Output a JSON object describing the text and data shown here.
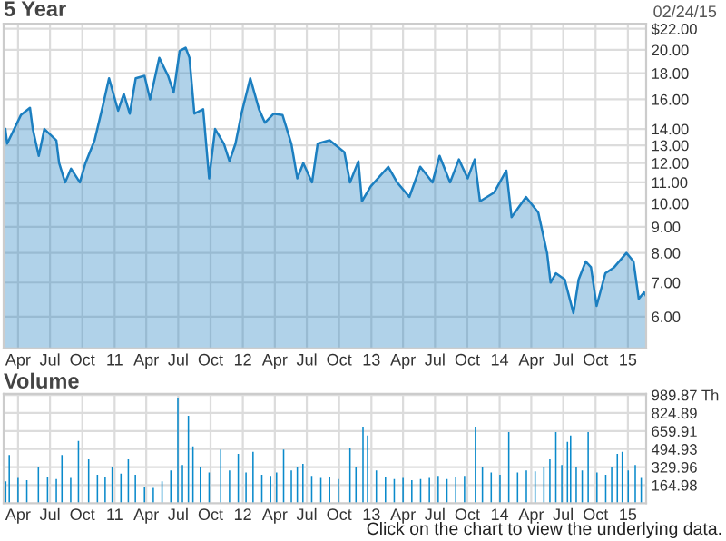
{
  "chart_data": [
    {
      "type": "area",
      "title": "5 Year",
      "subtitle": "02/24/15",
      "log": "y",
      "grid": true,
      "xlim": [
        "2010-02-19",
        "2015-02-22"
      ],
      "ylim": [
        5.2,
        22.5
      ],
      "yticks": [
        {
          "value": 6,
          "label": "6.00"
        },
        {
          "value": 7,
          "label": "7.00"
        },
        {
          "value": 8,
          "label": "8.00"
        },
        {
          "value": 9,
          "label": "9.00"
        },
        {
          "value": 10,
          "label": "10.00"
        },
        {
          "value": 11,
          "label": "11.00"
        },
        {
          "value": 12,
          "label": "12.00"
        },
        {
          "value": 13,
          "label": "13.00"
        },
        {
          "value": 14,
          "label": "14.00"
        },
        {
          "value": 16,
          "label": "16.00"
        },
        {
          "value": 18,
          "label": "18.00"
        },
        {
          "value": 20,
          "label": "20.00"
        },
        {
          "value": 22,
          "label": "$22.00"
        }
      ],
      "xticks": [
        {
          "value": "2010-04-01",
          "label": "Apr"
        },
        {
          "value": "2010-07-01",
          "label": "Jul"
        },
        {
          "value": "2010-10-01",
          "label": "Oct"
        },
        {
          "value": "2011-01-01",
          "label": "11"
        },
        {
          "value": "2011-04-01",
          "label": "Apr"
        },
        {
          "value": "2011-07-01",
          "label": "Jul"
        },
        {
          "value": "2011-10-01",
          "label": "Oct"
        },
        {
          "value": "2012-01-01",
          "label": "12"
        },
        {
          "value": "2012-04-01",
          "label": "Apr"
        },
        {
          "value": "2012-07-01",
          "label": "Jul"
        },
        {
          "value": "2012-10-01",
          "label": "Oct"
        },
        {
          "value": "2013-01-01",
          "label": "13"
        },
        {
          "value": "2013-04-01",
          "label": "Apr"
        },
        {
          "value": "2013-07-01",
          "label": "Jul"
        },
        {
          "value": "2013-10-01",
          "label": "Oct"
        },
        {
          "value": "2014-01-01",
          "label": "14"
        },
        {
          "value": "2014-04-01",
          "label": "Apr"
        },
        {
          "value": "2014-07-01",
          "label": "Jul"
        },
        {
          "value": "2014-10-01",
          "label": "Oct"
        },
        {
          "value": "2015-01-01",
          "label": "15"
        }
      ],
      "series": [
        {
          "color": "#1c7fc0",
          "x": [
            "2010-02-24",
            "2010-03-01",
            "2010-04-09",
            "2010-05-05",
            "2010-05-13",
            "2010-05-30",
            "2010-06-15",
            "2010-07-19",
            "2010-07-27",
            "2010-08-13",
            "2010-08-30",
            "2010-09-24",
            "2010-10-10",
            "2010-11-05",
            "2010-11-29",
            "2010-12-16",
            "2011-01-11",
            "2011-01-27",
            "2011-02-13",
            "2011-03-02",
            "2011-03-27",
            "2011-04-12",
            "2011-05-08",
            "2011-06-02",
            "2011-06-18",
            "2011-07-05",
            "2011-07-22",
            "2011-08-02",
            "2011-08-16",
            "2011-09-10",
            "2011-09-27",
            "2011-10-14",
            "2011-11-08",
            "2011-11-24",
            "2011-12-11",
            "2011-12-28",
            "2012-01-22",
            "2012-02-16",
            "2012-03-04",
            "2012-03-29",
            "2012-04-23",
            "2012-05-18",
            "2012-06-04",
            "2012-06-21",
            "2012-07-16",
            "2012-08-01",
            "2012-09-04",
            "2012-10-16",
            "2012-11-01",
            "2012-11-25",
            "2012-12-05",
            "2012-12-30",
            "2013-02-18",
            "2013-03-15",
            "2013-04-19",
            "2013-05-20",
            "2013-06-24",
            "2013-07-14",
            "2013-08-13",
            "2013-09-07",
            "2013-10-02",
            "2013-10-22",
            "2013-11-06",
            "2013-12-16",
            "2014-01-20",
            "2014-02-04",
            "2014-03-17",
            "2014-04-21",
            "2014-05-16",
            "2014-05-26",
            "2014-06-10",
            "2014-07-05",
            "2014-07-30",
            "2014-08-14",
            "2014-09-03",
            "2014-09-18",
            "2014-10-04",
            "2014-10-29",
            "2014-11-23",
            "2014-12-28",
            "2015-01-17",
            "2015-02-01",
            "2015-02-16",
            "2015-02-21"
          ],
          "values": [
            14.0,
            13.1,
            14.9,
            15.4,
            14.0,
            12.4,
            14.0,
            13.3,
            12.0,
            11.0,
            11.7,
            11.0,
            12.0,
            13.3,
            15.6,
            17.6,
            15.2,
            16.4,
            15.0,
            17.6,
            17.8,
            16.0,
            19.3,
            17.8,
            16.5,
            19.9,
            20.2,
            19.3,
            15.0,
            15.3,
            11.2,
            14.0,
            13.1,
            12.1,
            13.1,
            15.0,
            17.6,
            15.3,
            14.4,
            15.0,
            14.9,
            13.1,
            11.2,
            12.0,
            11.0,
            13.1,
            13.3,
            12.6,
            11.0,
            12.1,
            10.1,
            10.8,
            11.8,
            11.0,
            10.3,
            11.8,
            11.0,
            12.4,
            11.0,
            12.2,
            11.2,
            12.2,
            10.1,
            10.5,
            11.6,
            9.4,
            10.3,
            9.6,
            8.0,
            7.0,
            7.3,
            7.1,
            6.1,
            7.1,
            7.7,
            7.5,
            6.3,
            7.3,
            7.5,
            8.0,
            7.7,
            6.5,
            6.7,
            6.6
          ]
        }
      ]
    },
    {
      "type": "bar",
      "title": "Volume",
      "grid": true,
      "xlim": [
        "2010-02-19",
        "2015-02-22"
      ],
      "ylim": [
        0,
        1000
      ],
      "yticks": [
        {
          "value": 164.98,
          "label": "164.98"
        },
        {
          "value": 329.96,
          "label": "329.96"
        },
        {
          "value": 494.93,
          "label": "494.93"
        },
        {
          "value": 659.91,
          "label": "659.91"
        },
        {
          "value": 824.89,
          "label": "824.89"
        },
        {
          "value": 989.87,
          "label": "989.87 Th"
        }
      ],
      "xticks": [
        {
          "value": "2010-04-01",
          "label": "Apr"
        },
        {
          "value": "2010-07-01",
          "label": "Jul"
        },
        {
          "value": "2010-10-01",
          "label": "Oct"
        },
        {
          "value": "2011-01-01",
          "label": "11"
        },
        {
          "value": "2011-04-01",
          "label": "Apr"
        },
        {
          "value": "2011-07-01",
          "label": "Jul"
        },
        {
          "value": "2011-10-01",
          "label": "Oct"
        },
        {
          "value": "2012-01-01",
          "label": "12"
        },
        {
          "value": "2012-04-01",
          "label": "Apr"
        },
        {
          "value": "2012-07-01",
          "label": "Jul"
        },
        {
          "value": "2012-10-01",
          "label": "Oct"
        },
        {
          "value": "2013-01-01",
          "label": "13"
        },
        {
          "value": "2013-04-01",
          "label": "Apr"
        },
        {
          "value": "2013-07-01",
          "label": "Jul"
        },
        {
          "value": "2013-10-01",
          "label": "Oct"
        },
        {
          "value": "2014-01-01",
          "label": "14"
        },
        {
          "value": "2014-04-01",
          "label": "Apr"
        },
        {
          "value": "2014-07-01",
          "label": "Jul"
        },
        {
          "value": "2014-10-01",
          "label": "Oct"
        },
        {
          "value": "2015-01-01",
          "label": "15"
        }
      ],
      "annotations": [
        "Click on the chart to view the underlying data."
      ],
      "series": [
        {
          "color": "#0a8acb",
          "x": [
            "2010-02-25",
            "2010-03-07",
            "2010-04-01",
            "2010-04-26",
            "2010-05-29",
            "2010-06-24",
            "2010-07-19",
            "2010-08-04",
            "2010-08-29",
            "2010-09-20",
            "2010-10-19",
            "2010-11-13",
            "2010-12-05",
            "2010-12-25",
            "2011-01-19",
            "2011-02-09",
            "2011-03-01",
            "2011-03-27",
            "2011-04-21",
            "2011-05-16",
            "2011-06-10",
            "2011-06-30",
            "2011-07-13",
            "2011-07-30",
            "2011-08-12",
            "2011-09-02",
            "2011-09-27",
            "2011-10-30",
            "2011-11-24",
            "2011-12-19",
            "2012-01-10",
            "2012-01-30",
            "2012-02-24",
            "2012-03-20",
            "2012-04-06",
            "2012-04-26",
            "2012-05-18",
            "2012-06-04",
            "2012-06-20",
            "2012-07-15",
            "2012-08-10",
            "2012-09-04",
            "2012-09-29",
            "2012-11-01",
            "2012-11-18",
            "2012-12-08",
            "2012-12-21",
            "2013-01-15",
            "2013-02-10",
            "2013-03-07",
            "2013-04-01",
            "2013-04-26",
            "2013-05-21",
            "2013-06-15",
            "2013-07-10",
            "2013-08-04",
            "2013-08-29",
            "2013-09-23",
            "2013-10-24",
            "2013-11-13",
            "2013-12-08",
            "2014-01-02",
            "2014-01-27",
            "2014-02-21",
            "2014-03-18",
            "2014-04-12",
            "2014-05-07",
            "2014-05-24",
            "2014-06-10",
            "2014-06-27",
            "2014-07-13",
            "2014-07-22",
            "2014-08-07",
            "2014-08-24",
            "2014-09-10",
            "2014-10-05",
            "2014-10-30",
            "2014-11-16",
            "2014-12-02",
            "2014-12-16",
            "2015-01-02",
            "2015-01-22",
            "2015-02-08"
          ],
          "values": [
            200,
            440,
            230,
            210,
            330,
            240,
            220,
            440,
            230,
            570,
            400,
            260,
            240,
            330,
            270,
            400,
            260,
            150,
            140,
            200,
            300,
            960,
            350,
            800,
            520,
            330,
            280,
            490,
            300,
            450,
            280,
            470,
            260,
            250,
            280,
            490,
            300,
            330,
            360,
            250,
            230,
            240,
            220,
            500,
            330,
            700,
            620,
            300,
            240,
            220,
            230,
            210,
            220,
            230,
            250,
            220,
            240,
            250,
            700,
            330,
            280,
            260,
            650,
            280,
            300,
            290,
            330,
            400,
            650,
            350,
            560,
            620,
            330,
            300,
            650,
            280,
            260,
            330,
            450,
            470,
            300,
            350,
            230
          ]
        }
      ]
    }
  ]
}
